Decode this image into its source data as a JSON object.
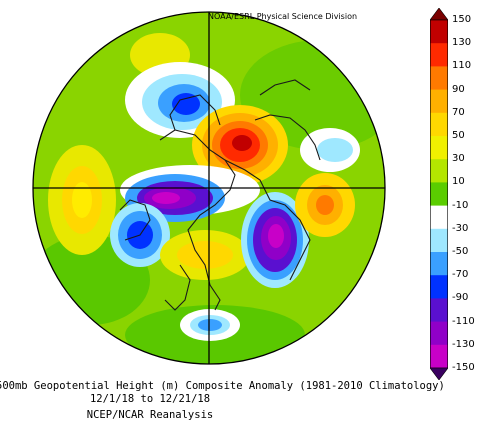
{
  "credit": "NOAA/ESRL Physical Science Division",
  "caption": {
    "line1": "500mb Geopotential Height (m) Composite Anomaly (1981-2010 Climatology)",
    "line2": "12/1/18 to 12/21/18",
    "line3": "NCEP/NCAR Reanalysis"
  },
  "colorbar": {
    "labels": [
      "150",
      "130",
      "110",
      "90",
      "70",
      "50",
      "30",
      "10",
      "-10",
      "-30",
      "-50",
      "-70",
      "-90",
      "-110",
      "-130",
      "-150"
    ],
    "colors": [
      "#7a0000",
      "#c10000",
      "#ff2a00",
      "#ff7a00",
      "#ffb000",
      "#ffd800",
      "#f0f000",
      "#b4e600",
      "#5acd00",
      "#ffffff",
      "#9fe8ff",
      "#3aa0ff",
      "#0032ff",
      "#5a10d0",
      "#9000c8",
      "#c800c8",
      "#3a0060"
    ]
  }
}
